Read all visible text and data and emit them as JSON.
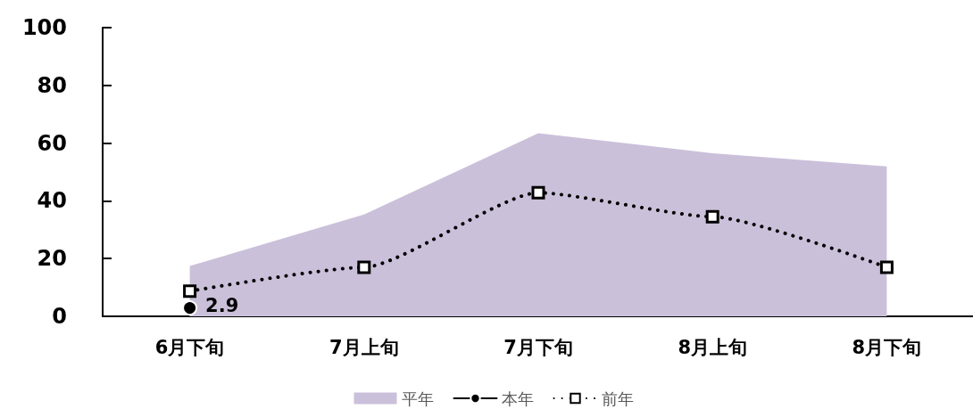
{
  "chart_data": {
    "type": "line",
    "categories": [
      "6月下旬",
      "7月上旬",
      "7月下旬",
      "8月上旬",
      "8月下旬"
    ],
    "ylim": [
      0,
      100
    ],
    "yticks": [
      0,
      20,
      40,
      60,
      80,
      100
    ],
    "legend": "bottom",
    "series": [
      {
        "name": "平年",
        "type": "area",
        "color": "#cbc0da",
        "values": [
          17.4,
          35.3,
          63.4,
          56.5,
          51.9
        ]
      },
      {
        "name": "本年",
        "type": "line",
        "color": "#000000",
        "marker": "circle",
        "line_style": "solid",
        "values": [
          2.9,
          null,
          null,
          null,
          null
        ],
        "value_labels": [
          "2.9",
          null,
          null,
          null,
          null
        ]
      },
      {
        "name": "前年",
        "type": "line",
        "color": "#000000",
        "marker": "square",
        "line_style": "dotted",
        "values": [
          8.7,
          17.0,
          42.8,
          34.5,
          17.0
        ]
      }
    ]
  }
}
